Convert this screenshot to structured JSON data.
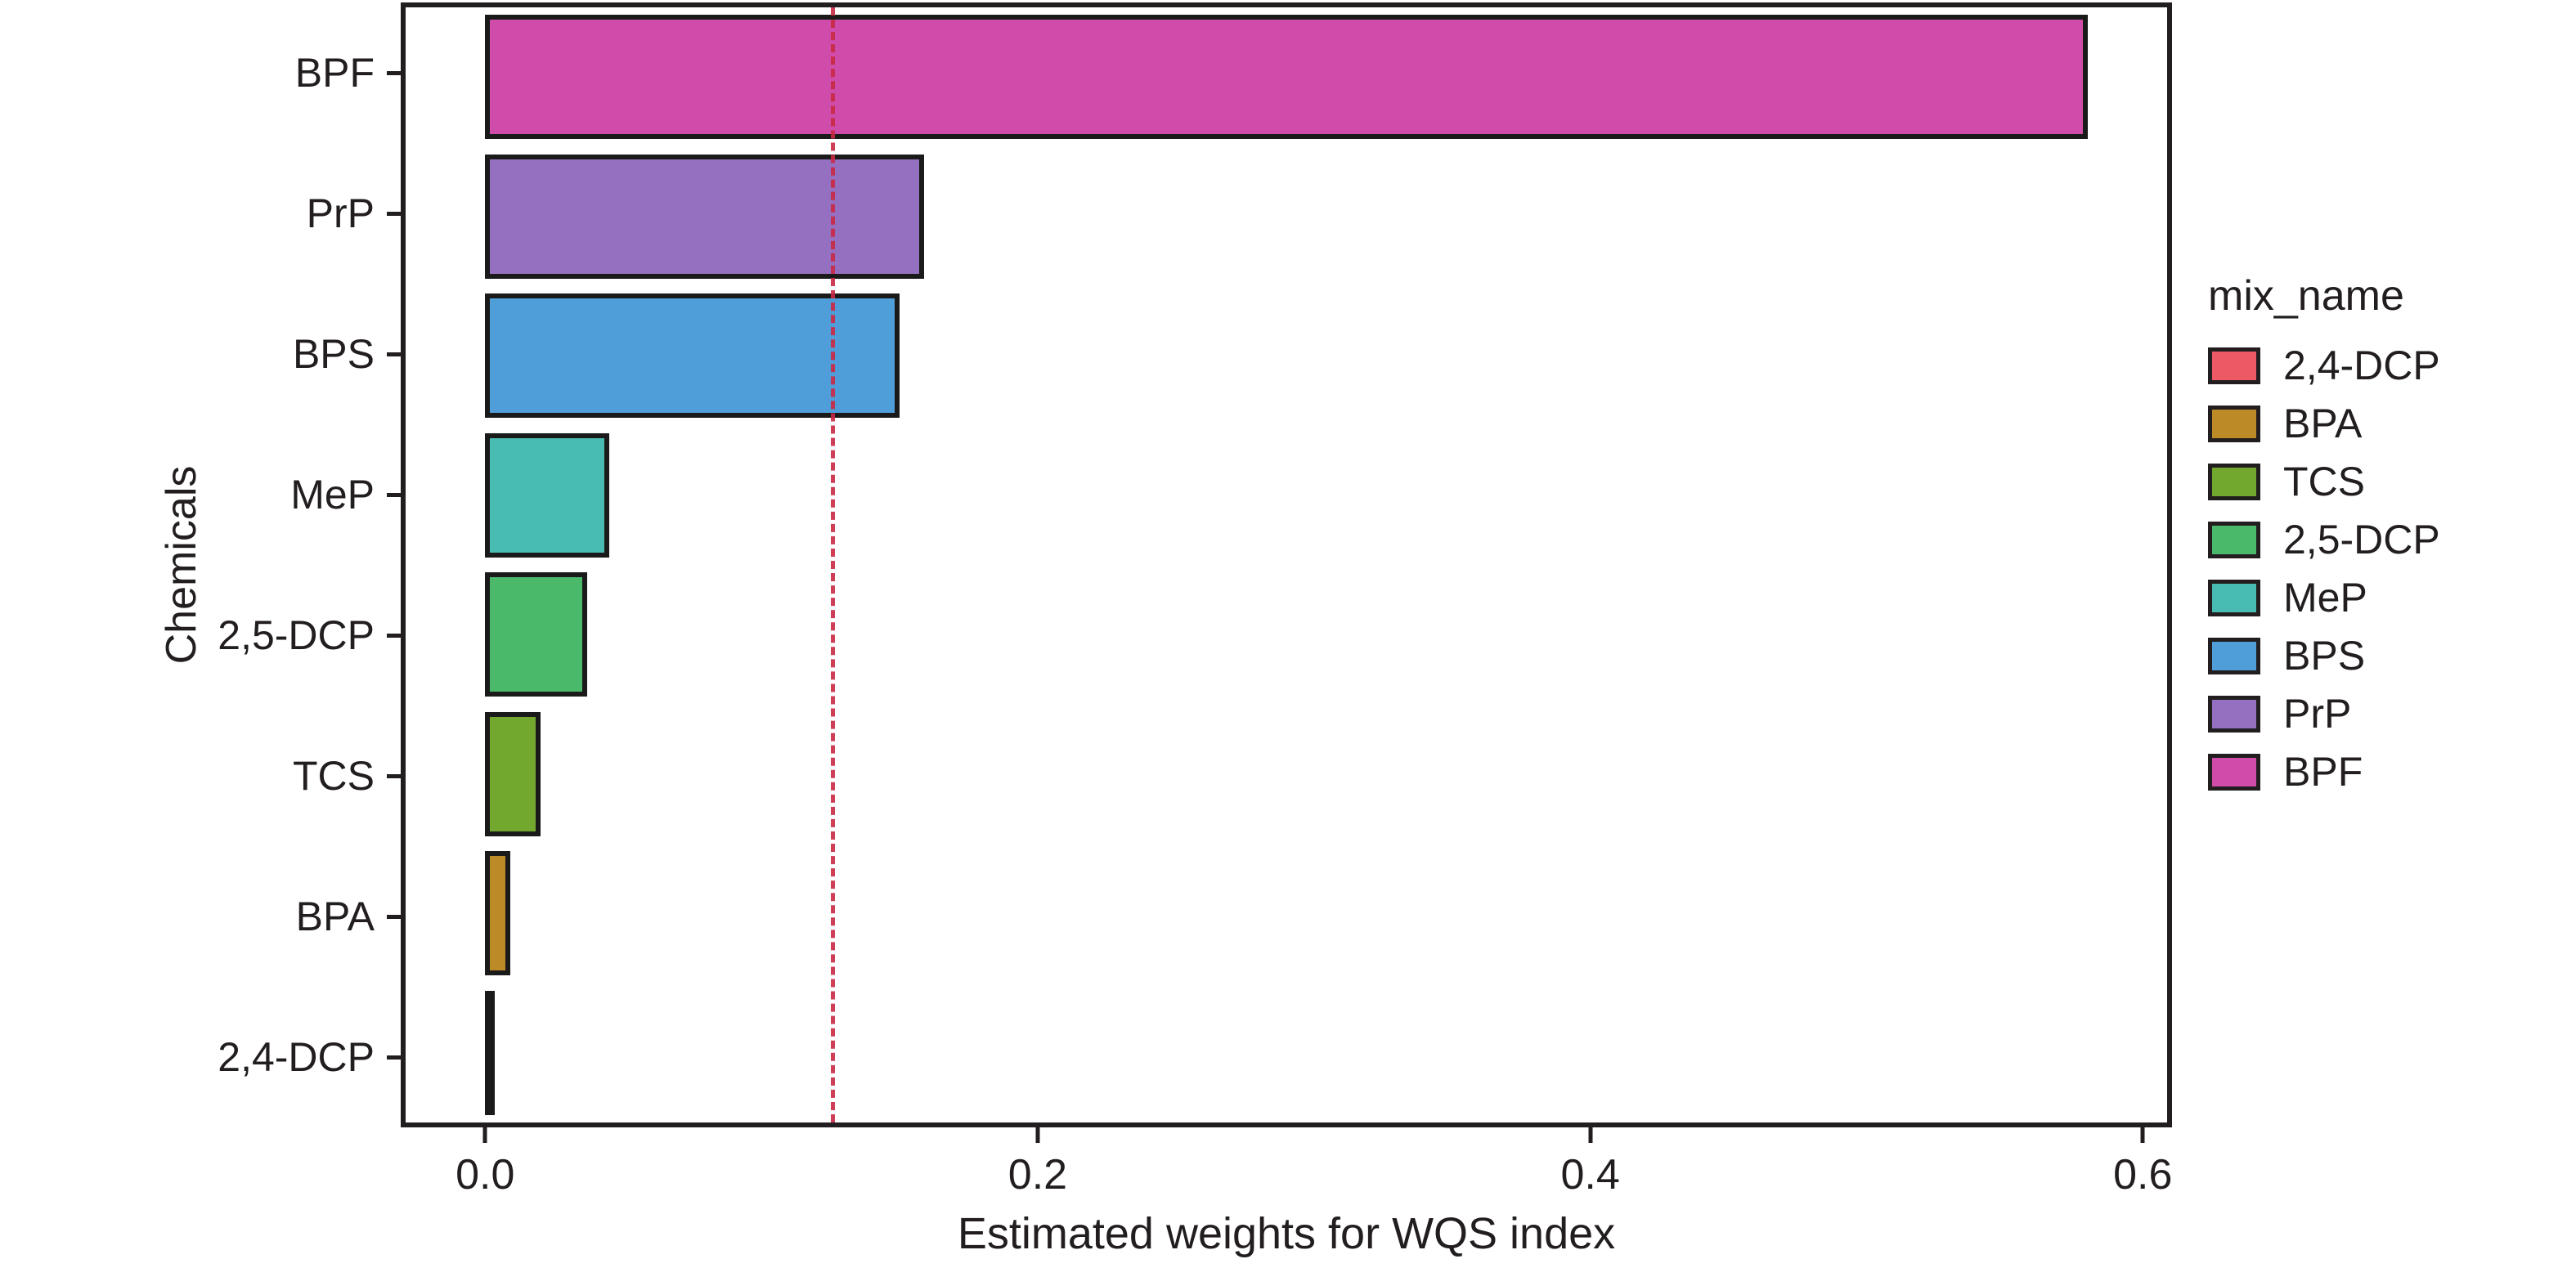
{
  "chart_data": {
    "type": "bar",
    "orientation": "horizontal",
    "title": "",
    "xlabel": "Estimated weights for WQS index",
    "ylabel": "Chemicals",
    "xlim": [
      -0.0288,
      0.6088
    ],
    "grid": false,
    "bar_band_fraction": 0.88,
    "categories": [
      "BPF",
      "PrP",
      "BPS",
      "MeP",
      "2,5-DCP",
      "TCS",
      "BPA",
      "2,4-DCP"
    ],
    "values": [
      0.58,
      0.159,
      0.15,
      0.045,
      0.037,
      0.02,
      0.009,
      0.003
    ],
    "bars": [
      {
        "label": "BPF",
        "value": 0.58,
        "color": "#d04cab"
      },
      {
        "label": "PrP",
        "value": 0.159,
        "color": "#9570c0"
      },
      {
        "label": "BPS",
        "value": 0.15,
        "color": "#4f9ed9"
      },
      {
        "label": "MeP",
        "value": 0.045,
        "color": "#48bcb3"
      },
      {
        "label": "2,5-DCP",
        "value": 0.037,
        "color": "#4bb96a"
      },
      {
        "label": "TCS",
        "value": 0.02,
        "color": "#73a82f"
      },
      {
        "label": "BPA",
        "value": 0.009,
        "color": "#bd8a28"
      },
      {
        "label": "2,4-DCP",
        "value": 0.003,
        "color": "#ee5966"
      }
    ],
    "x_ticks": [
      {
        "label": "0.0",
        "value": 0.0
      },
      {
        "label": "0.2",
        "value": 0.2
      },
      {
        "label": "0.4",
        "value": 0.4
      },
      {
        "label": "0.6",
        "value": 0.6
      }
    ],
    "reference_line": {
      "value": 0.125,
      "style": "dashed",
      "color": "#c92a45"
    },
    "legend": {
      "title": "mix_name",
      "position": "right",
      "entries": [
        {
          "label": "2,4-DCP",
          "color": "#ee5966"
        },
        {
          "label": "BPA",
          "color": "#bd8a28"
        },
        {
          "label": "TCS",
          "color": "#73a82f"
        },
        {
          "label": "2,5-DCP",
          "color": "#4bb96a"
        },
        {
          "label": "MeP",
          "color": "#48bcb3"
        },
        {
          "label": "BPS",
          "color": "#4f9ed9"
        },
        {
          "label": "PrP",
          "color": "#9570c0"
        },
        {
          "label": "BPF",
          "color": "#d04cab"
        }
      ]
    }
  }
}
